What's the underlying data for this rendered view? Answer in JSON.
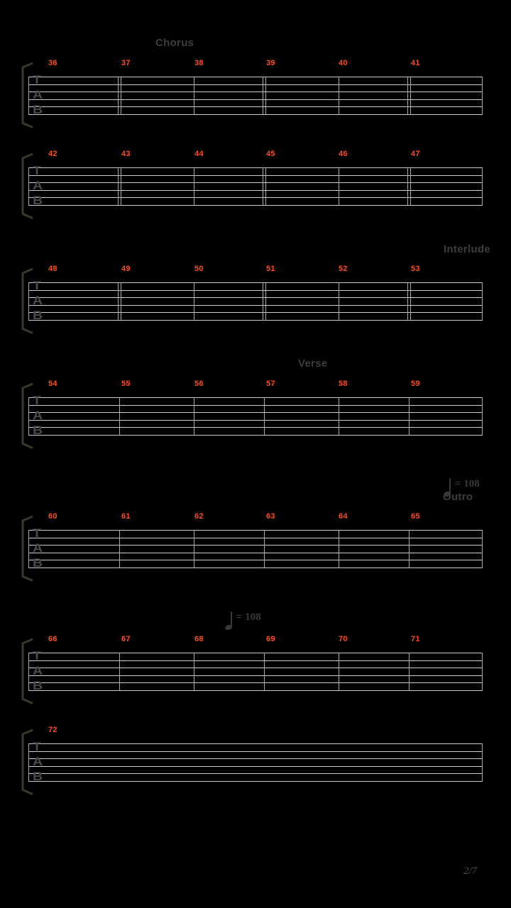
{
  "page_indicator": "2/7",
  "clef": "TAB",
  "colors": {
    "background": "#000000",
    "staff_line": "#cccccc",
    "barline": "#a9a9a9",
    "measure_number": "#ff4e1d",
    "section_label": "#3d3d3d",
    "tempo": "#383838",
    "clef": "#4a4a4a",
    "bracket": "#3a372b",
    "page_indicator": "#4e4e4e"
  },
  "systems": [
    {
      "measures": [
        "36",
        "37",
        "38",
        "39",
        "40",
        "41"
      ],
      "internal_barlines": [
        "double",
        "single",
        "double",
        "single",
        "double"
      ]
    },
    {
      "measures": [
        "42",
        "43",
        "44",
        "45",
        "46",
        "47"
      ],
      "internal_barlines": [
        "double",
        "single",
        "double",
        "single",
        "double"
      ]
    },
    {
      "measures": [
        "48",
        "49",
        "50",
        "51",
        "52",
        "53"
      ],
      "internal_barlines": [
        "double",
        "single",
        "double",
        "single",
        "double"
      ]
    },
    {
      "measures": [
        "54",
        "55",
        "56",
        "57",
        "58",
        "59"
      ],
      "internal_barlines": [
        "single",
        "single",
        "single",
        "single",
        "single"
      ]
    },
    {
      "measures": [
        "60",
        "61",
        "62",
        "63",
        "64",
        "65"
      ],
      "internal_barlines": [
        "single",
        "single",
        "single",
        "single",
        "single"
      ]
    },
    {
      "measures": [
        "66",
        "67",
        "68",
        "69",
        "70",
        "71"
      ],
      "internal_barlines": [
        "single",
        "single",
        "single",
        "single",
        "single"
      ]
    },
    {
      "measures": [
        "72"
      ],
      "internal_barlines": []
    }
  ],
  "annotations": [
    {
      "kind": "section",
      "text": "Chorus"
    },
    {
      "kind": "section",
      "text": "Interlude"
    },
    {
      "kind": "section",
      "text": "Verse"
    },
    {
      "kind": "tempo",
      "text": "= 108",
      "icon": "quarter-note-icon"
    },
    {
      "kind": "section",
      "text": "Outro"
    },
    {
      "kind": "tempo",
      "text": "= 108",
      "icon": "quarter-note-icon"
    }
  ]
}
